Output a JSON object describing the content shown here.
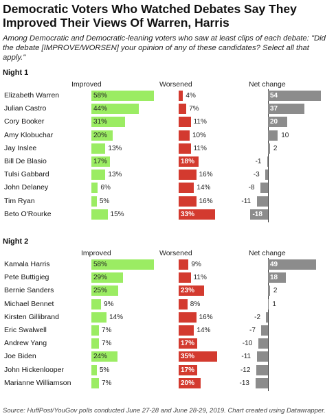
{
  "title": "Democratic Voters Who Watched Debates Say They Improved Their Views Of Warren, Harris",
  "subtitle": "Among Democratic and Democratic-leaning voters who saw at least clips of each debate: \"Did the debate [IMPROVE/WORSEN] your opinion of any of these candidates? Select all that apply.\"",
  "footer": "Source: HuffPost/YouGov polls conducted June 27-28 and June 28-29, 2019. Chart created using Datawrapper.",
  "colors": {
    "improved": "#9bec63",
    "worsened": "#d33a2f",
    "net": "#8c8c8c"
  },
  "chart_data": [
    {
      "type": "bar",
      "title": "Night 1",
      "columns": [
        "Improved",
        "Worsened",
        "Net change"
      ],
      "categories": [
        "Elizabeth Warren",
        "Julian Castro",
        "Cory Booker",
        "Amy Klobuchar",
        "Jay Inslee",
        "Bill De Blasio",
        "Tulsi Gabbard",
        "John Delaney",
        "Tim Ryan",
        "Beto O'Rourke"
      ],
      "series": [
        {
          "name": "Improved",
          "values": [
            58,
            44,
            31,
            20,
            13,
            17,
            13,
            6,
            5,
            15
          ],
          "labels": [
            "58%",
            "44%",
            "31%",
            "20%",
            "13%",
            "17%",
            "13%",
            "6%",
            "5%",
            "15%"
          ]
        },
        {
          "name": "Worsened",
          "values": [
            4,
            7,
            11,
            10,
            11,
            18,
            16,
            14,
            16,
            33
          ],
          "labels": [
            "4%",
            "7%",
            "11%",
            "10%",
            "11%",
            "18%",
            "16%",
            "14%",
            "16%",
            "33%"
          ]
        },
        {
          "name": "Net change",
          "values": [
            54,
            37,
            20,
            10,
            2,
            -1,
            -3,
            -8,
            -11,
            -18
          ],
          "labels": [
            "54",
            "37",
            "20",
            "10",
            "2",
            "-1",
            "-3",
            "-8",
            "-11",
            "-18"
          ]
        }
      ]
    },
    {
      "type": "bar",
      "title": "Night 2",
      "columns": [
        "Improved",
        "Worsened",
        "Net change"
      ],
      "categories": [
        "Kamala Harris",
        "Pete Buttigieg",
        "Bernie Sanders",
        "Michael Bennet",
        "Kirsten Gillibrand",
        "Eric Swalwell",
        "Andrew Yang",
        "Joe Biden",
        "John Hickenlooper",
        "Marianne Williamson"
      ],
      "series": [
        {
          "name": "Improved",
          "values": [
            58,
            29,
            25,
            9,
            14,
            7,
            7,
            24,
            5,
            7
          ],
          "labels": [
            "58%",
            "29%",
            "25%",
            "9%",
            "14%",
            "7%",
            "7%",
            "24%",
            "5%",
            "7%"
          ]
        },
        {
          "name": "Worsened",
          "values": [
            9,
            11,
            23,
            8,
            16,
            14,
            17,
            35,
            17,
            20
          ],
          "labels": [
            "9%",
            "11%",
            "23%",
            "8%",
            "16%",
            "14%",
            "17%",
            "35%",
            "17%",
            "20%"
          ]
        },
        {
          "name": "Net change",
          "values": [
            49,
            18,
            2,
            1,
            -2,
            -7,
            -10,
            -11,
            -12,
            -13
          ],
          "labels": [
            "49",
            "18",
            "2",
            "1",
            "-2",
            "-7",
            "-10",
            "-11",
            "-12",
            "-13"
          ]
        }
      ]
    }
  ]
}
